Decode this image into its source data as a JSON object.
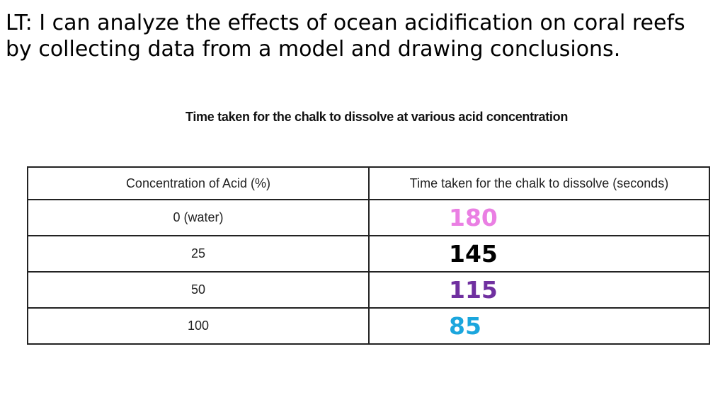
{
  "header": {
    "title_lines": [
      "LT: I can analyze the effects of ocean acidification on coral reefs",
      "by collecting data from a model and drawing conclusions."
    ]
  },
  "table": {
    "caption": "Time taken for the chalk to dissolve at various acid concentration",
    "columns": [
      "Concentration of Acid (%)",
      "Time taken for the chalk to dissolve (seconds)"
    ],
    "rows": [
      {
        "concentration": "0 (water)",
        "time": 180,
        "color": "#ea7fe3"
      },
      {
        "concentration": "25",
        "time": 145,
        "color": "#000000"
      },
      {
        "concentration": "50",
        "time": 115,
        "color": "#7030a0"
      },
      {
        "concentration": "100",
        "time": 85,
        "color": "#1ba6dd"
      }
    ]
  }
}
